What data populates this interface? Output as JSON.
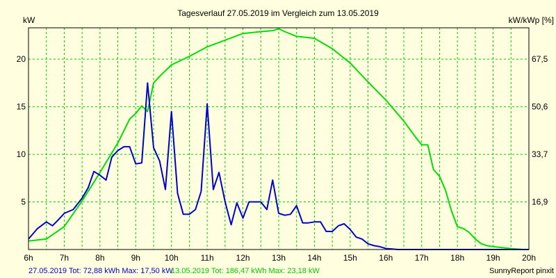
{
  "chart_data": {
    "type": "line",
    "title": "Tagesverlauf 27.05.2019 im Vergleich zum 13.05.2019",
    "ylabel_left": "kW",
    "ylabel_right": "kW/kWp [%]",
    "xlim": [
      6,
      20
    ],
    "ylim": [
      0,
      23.3
    ],
    "x_ticks": [
      {
        "x": 6,
        "label": "6h"
      },
      {
        "x": 7,
        "label": "7h"
      },
      {
        "x": 8,
        "label": "8h"
      },
      {
        "x": 9,
        "label": "9h"
      },
      {
        "x": 10,
        "label": "10h"
      },
      {
        "x": 11,
        "label": "11h"
      },
      {
        "x": 12,
        "label": "12h"
      },
      {
        "x": 13,
        "label": "13h"
      },
      {
        "x": 14,
        "label": "14h"
      },
      {
        "x": 15,
        "label": "15h"
      },
      {
        "x": 16,
        "label": "16h"
      },
      {
        "x": 17,
        "label": "17h"
      },
      {
        "x": 18,
        "label": "18h"
      },
      {
        "x": 19,
        "label": "19h"
      },
      {
        "x": 20,
        "label": "20h"
      }
    ],
    "y_ticks_left": [
      {
        "y": 5,
        "label": "5"
      },
      {
        "y": 10,
        "label": "10"
      },
      {
        "y": 15,
        "label": "15"
      },
      {
        "y": 20,
        "label": "20"
      }
    ],
    "y_ticks_right": [
      {
        "y": 5,
        "label": "16,9"
      },
      {
        "y": 10,
        "label": "33,7"
      },
      {
        "y": 15,
        "label": "50,6"
      },
      {
        "y": 20,
        "label": "67,5"
      }
    ],
    "x_grid": [
      6.5,
      7,
      7.5,
      8,
      8.5,
      9,
      9.5,
      10,
      10.5,
      11,
      11.5,
      12,
      12.5,
      13,
      13.5,
      14,
      14.5,
      15,
      15.5,
      16,
      16.5,
      17,
      17.5,
      18,
      18.5,
      19,
      19.5
    ],
    "y_grid": [
      5,
      10,
      15,
      20
    ],
    "grid": true,
    "series": [
      {
        "name": "27.05.2019",
        "color": "#0000cc",
        "x": [
          6.0,
          6.25,
          6.5,
          6.67,
          6.83,
          7.0,
          7.25,
          7.5,
          7.67,
          7.83,
          8.0,
          8.17,
          8.33,
          8.5,
          8.67,
          8.83,
          9.0,
          9.17,
          9.33,
          9.5,
          9.67,
          9.83,
          10.0,
          10.17,
          10.33,
          10.5,
          10.67,
          10.83,
          11.0,
          11.17,
          11.33,
          11.5,
          11.67,
          11.83,
          12.0,
          12.17,
          12.33,
          12.5,
          12.67,
          12.83,
          13.0,
          13.17,
          13.33,
          13.5,
          13.67,
          13.83,
          14.0,
          14.17,
          14.33,
          14.5,
          14.67,
          14.83,
          15.0,
          15.17,
          15.33,
          15.5,
          15.67,
          15.83,
          16.0,
          16.17,
          16.33,
          16.5,
          16.67,
          16.83,
          17.0,
          17.17,
          17.33,
          17.5,
          17.67,
          17.83,
          18.0,
          18.17,
          18.33,
          18.5,
          18.67,
          18.83,
          19.0,
          19.17,
          19.33,
          19.5,
          19.67,
          19.83,
          20.0
        ],
        "y": [
          1.1,
          2.2,
          2.9,
          2.5,
          3.1,
          3.8,
          4.2,
          5.4,
          6.5,
          8.2,
          7.8,
          7.3,
          9.7,
          10.4,
          10.8,
          10.8,
          9.0,
          9.1,
          17.5,
          10.7,
          9.3,
          6.3,
          14.5,
          5.9,
          3.7,
          3.7,
          4.2,
          6.1,
          15.3,
          6.3,
          8.1,
          5.0,
          2.6,
          4.9,
          3.3,
          5.0,
          5.0,
          5.0,
          4.2,
          7.3,
          3.8,
          3.6,
          3.7,
          4.6,
          2.8,
          2.8,
          2.9,
          2.9,
          1.9,
          1.9,
          2.5,
          2.7,
          2.1,
          1.3,
          1.1,
          0.6,
          0.4,
          0.3,
          0.1,
          0.05,
          0.0,
          0.0,
          0.0,
          0.0,
          0.0,
          0.0,
          0.0,
          0.0,
          0.0,
          0.0,
          0.0,
          0.0,
          0.0,
          0.0,
          0.0,
          0.0,
          0.0,
          0.0,
          0.0,
          0.0,
          0.0,
          0.0,
          0.0
        ]
      },
      {
        "name": "13.05.2019",
        "color": "#00dd00",
        "x": [
          6.0,
          6.5,
          7.0,
          7.5,
          8.0,
          8.5,
          8.83,
          9.0,
          9.17,
          9.33,
          9.5,
          9.67,
          10.0,
          10.5,
          11.0,
          11.5,
          12.0,
          12.5,
          12.83,
          13.0,
          13.17,
          13.5,
          14.0,
          14.5,
          15.0,
          15.5,
          16.0,
          16.5,
          16.83,
          17.0,
          17.17,
          17.33,
          17.5,
          17.67,
          17.83,
          18.0,
          18.17,
          18.33,
          18.5,
          18.67,
          18.83,
          19.0,
          19.5,
          19.83,
          20.0
        ],
        "y": [
          0.9,
          1.1,
          2.4,
          5.1,
          8.1,
          11.2,
          13.7,
          14.3,
          15.1,
          14.5,
          17.5,
          18.2,
          19.4,
          20.3,
          21.3,
          22.0,
          22.7,
          22.9,
          23.0,
          23.2,
          22.9,
          22.4,
          22.2,
          21.1,
          19.6,
          17.6,
          15.7,
          13.5,
          11.8,
          11.0,
          11.0,
          8.4,
          7.7,
          6.2,
          4.1,
          2.4,
          2.2,
          1.8,
          1.1,
          0.6,
          0.4,
          0.3,
          0.1,
          0.0,
          0.0
        ]
      }
    ]
  },
  "footer": {
    "series1_text": "27.05.2019 Tot: 72,88 kWh Max: 17,50 kW",
    "series2_text": "13.05.2019 Tot: 186,47 kWh Max: 23,18 kW",
    "brand": "SunnyReport pinxit"
  },
  "colors": {
    "background": "#ffffe0",
    "plot_background": "#ffffe0",
    "grid": "#00cc00",
    "axis": "#000000",
    "series1": "#0000cc",
    "series2": "#00dd00"
  }
}
